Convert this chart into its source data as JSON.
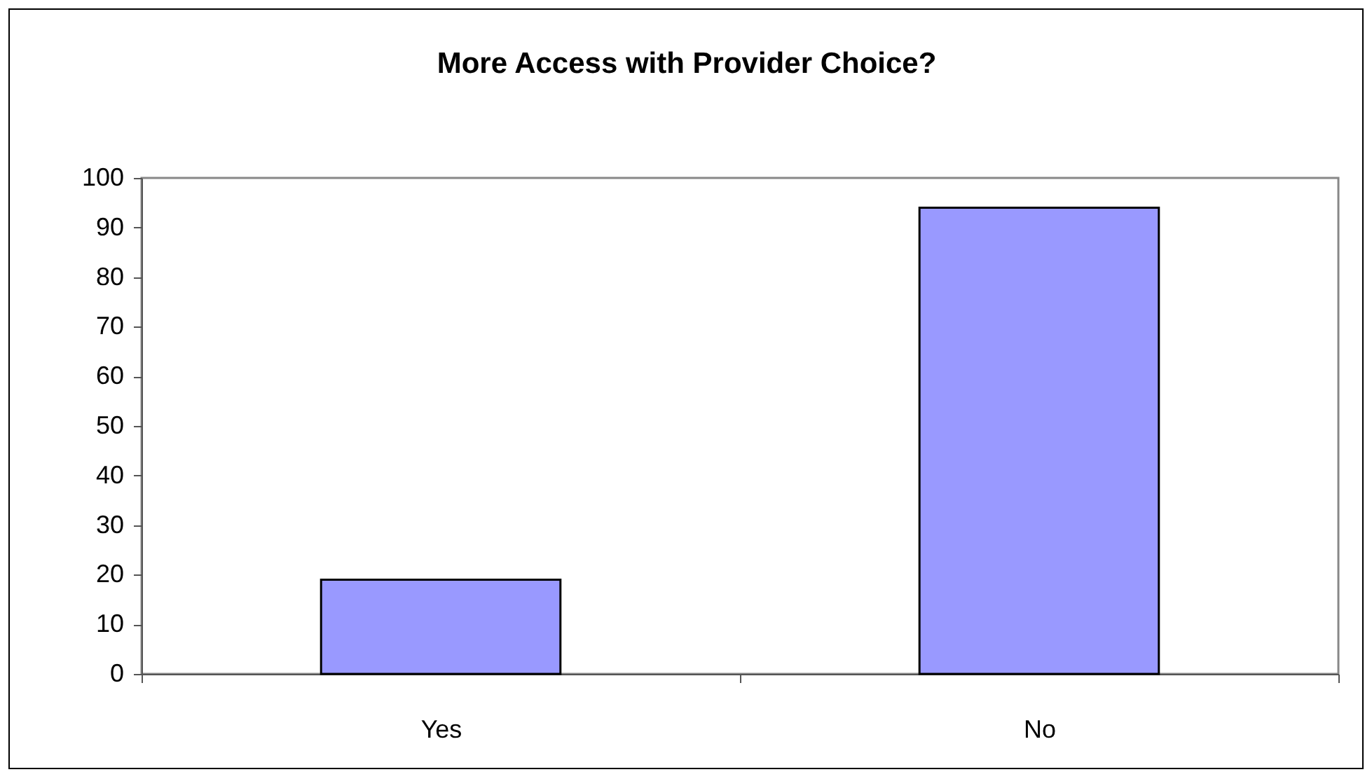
{
  "chart_data": {
    "type": "bar",
    "title": "More Access with Provider Choice?",
    "categories": [
      "Yes",
      "No"
    ],
    "values": [
      19,
      94
    ],
    "color": "#9999ff",
    "ylim": [
      0,
      100
    ],
    "yticks": [
      0,
      10,
      20,
      30,
      40,
      50,
      60,
      70,
      80,
      90,
      100
    ],
    "grid": false
  }
}
